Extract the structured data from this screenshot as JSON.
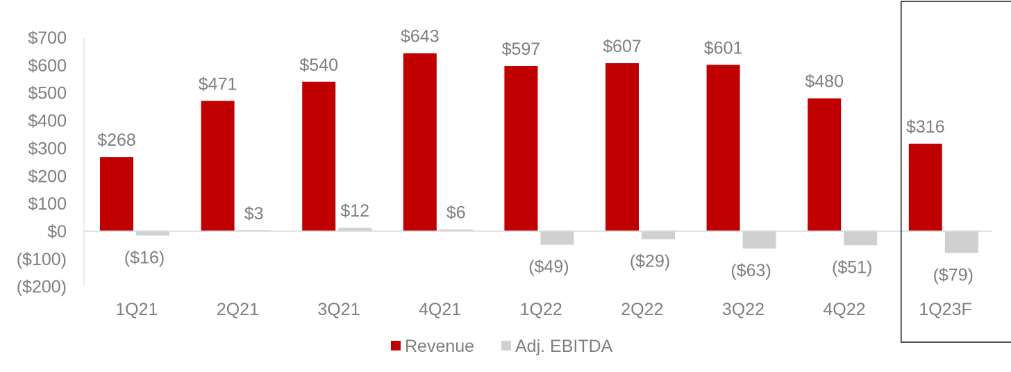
{
  "chart_data": {
    "type": "bar",
    "categories": [
      "1Q21",
      "2Q21",
      "3Q21",
      "4Q21",
      "1Q22",
      "2Q22",
      "3Q22",
      "4Q22",
      "1Q23F"
    ],
    "series": [
      {
        "name": "Revenue",
        "values": [
          268,
          471,
          540,
          643,
          597,
          607,
          601,
          480,
          316
        ],
        "labels": [
          "$268",
          "$471",
          "$540",
          "$643",
          "$597",
          "$607",
          "$601",
          "$480",
          "$316"
        ],
        "color": "#c00000"
      },
      {
        "name": "Adj. EBITDA",
        "values": [
          -16,
          3,
          12,
          6,
          -49,
          -29,
          -63,
          -51,
          -79
        ],
        "labels": [
          "($16)",
          "$3",
          "$12",
          "$6",
          "($49)",
          "($29)",
          "($63)",
          "($51)",
          "($79)"
        ],
        "color": "#d0d0d0"
      }
    ],
    "yticks": [
      {
        "value": 700,
        "label": "$700"
      },
      {
        "value": 600,
        "label": "$600"
      },
      {
        "value": 500,
        "label": "$500"
      },
      {
        "value": 400,
        "label": "$400"
      },
      {
        "value": 300,
        "label": "$300"
      },
      {
        "value": 200,
        "label": "$200"
      },
      {
        "value": 100,
        "label": "$100"
      },
      {
        "value": 0,
        "label": "$0"
      },
      {
        "value": -100,
        "label": "($100)"
      },
      {
        "value": -200,
        "label": "($200)"
      }
    ],
    "ylim": [
      -200,
      700
    ],
    "grid": false,
    "legend_position": "bottom-center",
    "highlighted_category": "1Q23F",
    "title": "",
    "xlabel": "",
    "ylabel": ""
  }
}
